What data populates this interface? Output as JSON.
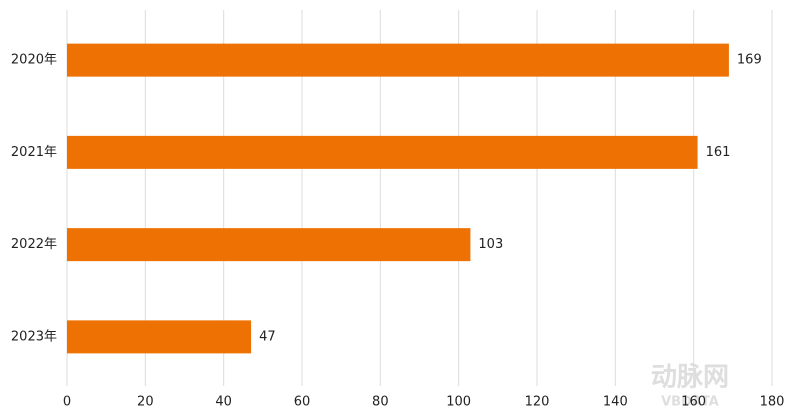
{
  "chart_data": {
    "type": "bar",
    "orientation": "horizontal",
    "categories": [
      "2020年",
      "2021年",
      "2022年",
      "2023年"
    ],
    "values": [
      169,
      161,
      103,
      47
    ],
    "color": "#ee7203",
    "xlim": [
      0,
      180
    ],
    "xticks": [
      0,
      20,
      40,
      60,
      80,
      100,
      120,
      140,
      160,
      180
    ],
    "grid": true,
    "watermark": [
      "动脉网",
      "VBDATA"
    ]
  }
}
